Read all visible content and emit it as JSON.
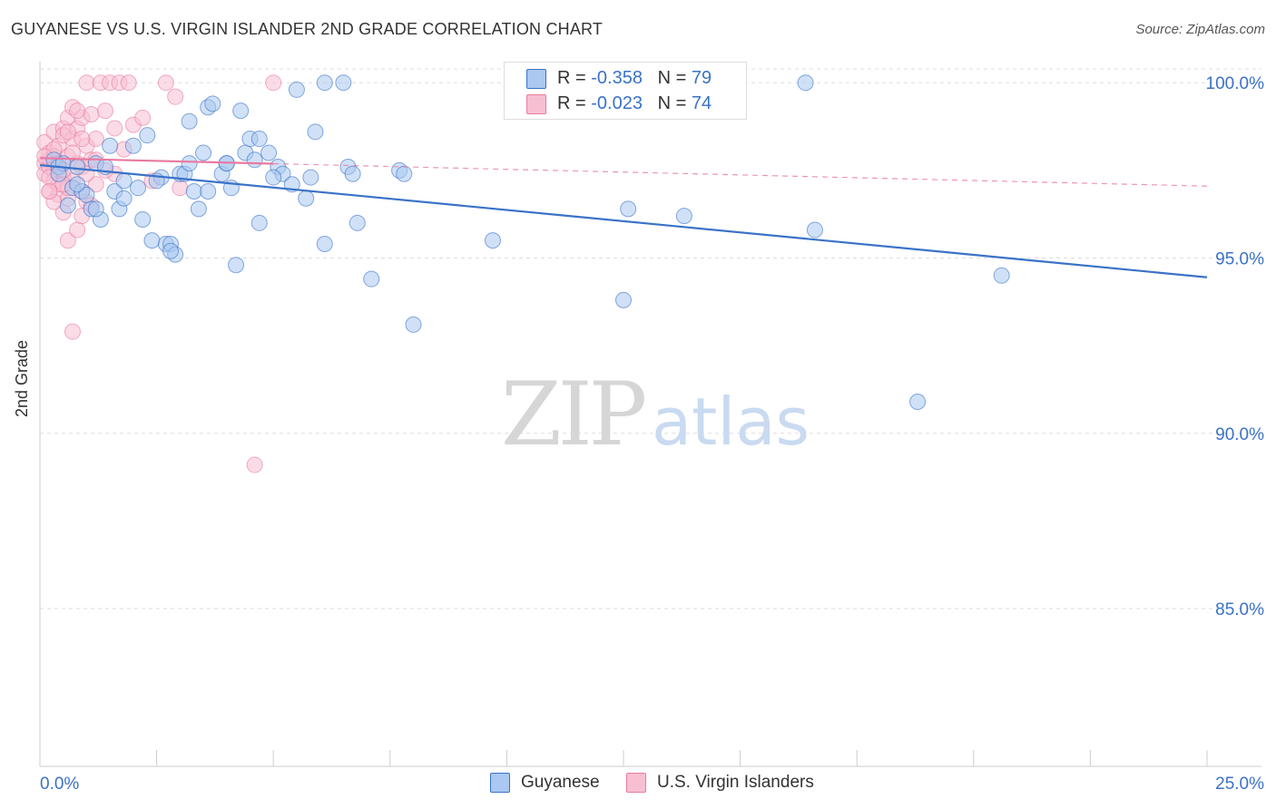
{
  "title": "GUYANESE VS U.S. VIRGIN ISLANDER 2ND GRADE CORRELATION CHART",
  "source": "Source: ZipAtlas.com",
  "watermark": {
    "zip": "ZIP",
    "atlas": "atlas"
  },
  "colors": {
    "blue": "#3a72c8",
    "blue_fill": "#aac8f0",
    "pink": "#e87aa0",
    "pink_fill": "#f8bfd2",
    "grid": "#dddddd",
    "axis": "#cccccc"
  },
  "legend_top": {
    "rows": [
      {
        "r_label": "R = ",
        "r_value": "-0.358",
        "n_label": "N = ",
        "n_value": "79"
      },
      {
        "r_label": "R = ",
        "r_value": "-0.023",
        "n_label": "N = ",
        "n_value": "74"
      }
    ]
  },
  "legend_bottom": {
    "series1": "Guyanese",
    "series2": "U.S. Virgin Islanders"
  },
  "chart_data": {
    "type": "scatter",
    "title": "GUYANESE VS U.S. VIRGIN ISLANDER 2ND GRADE CORRELATION CHART",
    "xlabel": "",
    "ylabel": "2nd Grade",
    "xlim": [
      0,
      25
    ],
    "ylim": [
      80.5,
      100.6
    ],
    "x_tick_labels": [
      "0.0%",
      "25.0%"
    ],
    "y_ticks": [
      100,
      95,
      90,
      85
    ],
    "y_tick_labels": [
      "100.0%",
      "95.0%",
      "90.0%",
      "85.0%"
    ],
    "grid": true,
    "series": [
      {
        "name": "Guyanese",
        "r": -0.358,
        "n": 79,
        "trend": {
          "x": [
            0.0,
            25.0
          ],
          "y": [
            97.65,
            94.45
          ],
          "dashed_until": null
        },
        "points": [
          [
            0.3,
            97.8
          ],
          [
            0.4,
            97.6
          ],
          [
            0.5,
            97.7
          ],
          [
            0.6,
            96.5
          ],
          [
            0.7,
            97.0
          ],
          [
            0.8,
            97.6
          ],
          [
            0.9,
            96.9
          ],
          [
            1.1,
            96.4
          ],
          [
            1.2,
            97.7
          ],
          [
            1.3,
            96.1
          ],
          [
            1.4,
            97.6
          ],
          [
            1.6,
            96.9
          ],
          [
            1.7,
            96.4
          ],
          [
            1.8,
            96.7
          ],
          [
            1.8,
            97.2
          ],
          [
            2.0,
            98.2
          ],
          [
            2.1,
            97.0
          ],
          [
            2.2,
            96.1
          ],
          [
            2.4,
            95.5
          ],
          [
            2.6,
            97.3
          ],
          [
            2.7,
            95.4
          ],
          [
            2.8,
            95.4
          ],
          [
            2.9,
            95.1
          ],
          [
            3.0,
            97.4
          ],
          [
            3.1,
            97.4
          ],
          [
            3.2,
            97.7
          ],
          [
            3.3,
            96.9
          ],
          [
            3.4,
            96.4
          ],
          [
            3.5,
            98.0
          ],
          [
            3.6,
            99.3
          ],
          [
            3.7,
            99.4
          ],
          [
            3.9,
            97.4
          ],
          [
            4.0,
            97.7
          ],
          [
            4.1,
            97.0
          ],
          [
            4.2,
            94.8
          ],
          [
            4.3,
            99.2
          ],
          [
            4.4,
            98.0
          ],
          [
            4.5,
            98.4
          ],
          [
            4.6,
            97.8
          ],
          [
            4.7,
            98.4
          ],
          [
            4.7,
            96.0
          ],
          [
            4.9,
            98.0
          ],
          [
            5.1,
            97.6
          ],
          [
            5.2,
            97.4
          ],
          [
            5.4,
            97.1
          ],
          [
            5.5,
            99.8
          ],
          [
            5.7,
            96.7
          ],
          [
            5.8,
            97.3
          ],
          [
            5.9,
            98.6
          ],
          [
            6.1,
            95.4
          ],
          [
            6.1,
            100.0
          ],
          [
            6.5,
            100.0
          ],
          [
            6.6,
            97.6
          ],
          [
            6.7,
            97.4
          ],
          [
            6.8,
            96.0
          ],
          [
            7.1,
            94.4
          ],
          [
            7.7,
            97.5
          ],
          [
            7.8,
            97.4
          ],
          [
            8.0,
            93.1
          ],
          [
            9.7,
            95.5
          ],
          [
            12.5,
            93.8
          ],
          [
            12.6,
            96.4
          ],
          [
            13.8,
            96.2
          ],
          [
            16.4,
            100.0
          ],
          [
            16.6,
            95.8
          ],
          [
            18.8,
            90.9
          ],
          [
            20.6,
            94.5
          ],
          [
            3.2,
            98.9
          ],
          [
            1.5,
            98.2
          ],
          [
            2.3,
            98.5
          ],
          [
            2.5,
            97.2
          ],
          [
            1.0,
            96.8
          ],
          [
            0.4,
            97.4
          ],
          [
            1.2,
            96.4
          ],
          [
            4.0,
            97.7
          ],
          [
            0.8,
            97.1
          ],
          [
            2.8,
            95.2
          ],
          [
            3.6,
            96.9
          ],
          [
            5.0,
            97.3
          ]
        ]
      },
      {
        "name": "U.S. Virgin Islanders",
        "r": -0.023,
        "n": 74,
        "trend": {
          "x": [
            0.0,
            25.0
          ],
          "y": [
            97.85,
            97.05
          ],
          "solid_until": 5.0
        },
        "points": [
          [
            0.1,
            98.3
          ],
          [
            0.1,
            97.7
          ],
          [
            0.1,
            97.4
          ],
          [
            0.2,
            97.8
          ],
          [
            0.2,
            98.0
          ],
          [
            0.2,
            96.9
          ],
          [
            0.3,
            97.5
          ],
          [
            0.3,
            98.6
          ],
          [
            0.3,
            97.2
          ],
          [
            0.4,
            96.8
          ],
          [
            0.4,
            98.2
          ],
          [
            0.4,
            97.6
          ],
          [
            0.5,
            98.7
          ],
          [
            0.5,
            97.3
          ],
          [
            0.5,
            96.3
          ],
          [
            0.6,
            99.0
          ],
          [
            0.6,
            97.9
          ],
          [
            0.6,
            95.5
          ],
          [
            0.7,
            99.3
          ],
          [
            0.7,
            98.4
          ],
          [
            0.7,
            97.2
          ],
          [
            0.8,
            98.7
          ],
          [
            0.8,
            97.7
          ],
          [
            0.8,
            95.8
          ],
          [
            0.9,
            99.0
          ],
          [
            0.9,
            97.6
          ],
          [
            0.9,
            96.9
          ],
          [
            1.0,
            100.0
          ],
          [
            1.0,
            98.2
          ],
          [
            1.0,
            96.6
          ],
          [
            1.1,
            99.1
          ],
          [
            1.1,
            97.8
          ],
          [
            1.2,
            98.4
          ],
          [
            1.2,
            97.1
          ],
          [
            1.3,
            100.0
          ],
          [
            1.4,
            99.2
          ],
          [
            1.5,
            100.0
          ],
          [
            1.6,
            98.7
          ],
          [
            1.6,
            97.4
          ],
          [
            1.7,
            100.0
          ],
          [
            1.8,
            98.1
          ],
          [
            1.9,
            100.0
          ],
          [
            2.0,
            98.8
          ],
          [
            2.2,
            99.0
          ],
          [
            2.4,
            97.2
          ],
          [
            2.7,
            100.0
          ],
          [
            2.9,
            99.6
          ],
          [
            3.0,
            97.0
          ],
          [
            0.7,
            92.9
          ],
          [
            4.6,
            89.1
          ],
          [
            5.0,
            100.0
          ],
          [
            0.2,
            97.6
          ],
          [
            0.3,
            97.9
          ],
          [
            0.4,
            97.1
          ],
          [
            0.5,
            98.5
          ],
          [
            0.6,
            96.7
          ],
          [
            0.2,
            97.3
          ],
          [
            0.3,
            98.1
          ],
          [
            0.1,
            97.9
          ],
          [
            0.4,
            97.7
          ],
          [
            0.5,
            97.5
          ],
          [
            0.6,
            97.0
          ],
          [
            0.7,
            98.0
          ],
          [
            0.8,
            99.2
          ],
          [
            0.9,
            98.4
          ],
          [
            1.0,
            97.4
          ],
          [
            1.1,
            96.5
          ],
          [
            1.2,
            97.8
          ],
          [
            0.3,
            96.6
          ],
          [
            0.2,
            96.9
          ],
          [
            0.5,
            97.1
          ],
          [
            0.6,
            98.6
          ],
          [
            1.4,
            97.5
          ],
          [
            0.9,
            96.2
          ]
        ]
      }
    ]
  }
}
